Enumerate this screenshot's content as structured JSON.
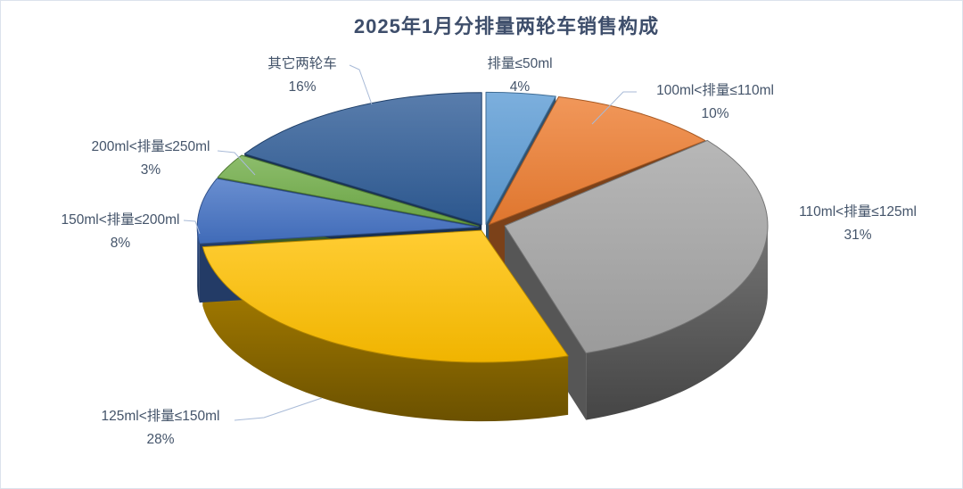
{
  "window": {
    "background": "#FFFFFF",
    "border_color": "#DCE2EC"
  },
  "chart_data": {
    "type": "pie",
    "style": "3d-exploded",
    "title": "2025年1月分排量两轮车销售构成",
    "title_color": "#3E4E6B",
    "label_color": "#44546A",
    "leader_line_color": "#A8BAD7",
    "unit": "%",
    "legend": "none",
    "data_label_format": "category name + percentage, outside slices with leader lines",
    "start_angle_deg": 0,
    "direction": "clockwise",
    "slices": [
      {
        "label": "排量≤50ml",
        "value": 4,
        "color": "#5B9BD5",
        "exploded": false
      },
      {
        "label": "100ml<排量≤110ml",
        "value": 10,
        "color": "#ED7D31",
        "exploded": false
      },
      {
        "label": "110ml<排量≤125ml",
        "value": 31,
        "color": "#A5A5A5",
        "exploded": true
      },
      {
        "label": "125ml<排量≤150ml",
        "value": 28,
        "color": "#FFC000",
        "exploded": false
      },
      {
        "label": "150ml<排量≤200ml",
        "value": 8,
        "color": "#4472C4",
        "exploded": false
      },
      {
        "label": "200ml<排量≤250ml",
        "value": 3,
        "color": "#70AD47",
        "exploded": false
      },
      {
        "label": "其它两轮车",
        "value": 16,
        "color": "#2F5D97",
        "exploded": false
      }
    ]
  }
}
